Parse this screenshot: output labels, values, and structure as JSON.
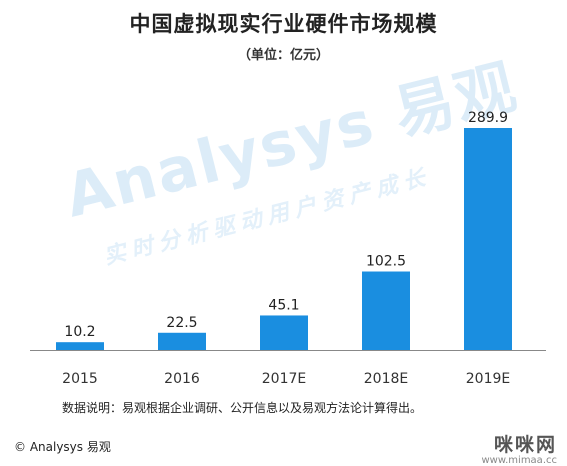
{
  "title": "中国虚拟现实行业硬件市场规模",
  "subtitle": "（单位：亿元）",
  "watermark": {
    "brand": "Analysys 易观",
    "slogan": "实时分析驱动用户资产成长"
  },
  "note": "数据说明：易观根据企业调研、公开信息以及易观方法论计算得出。",
  "footer": {
    "copyright": "© Analysys 易观",
    "site_name": "咪咪网",
    "site_url": "www.mimaa.cc"
  },
  "colors": {
    "bar": "#1a8ee0",
    "axis": "#888888",
    "text": "#222222"
  },
  "chart_data": {
    "type": "bar",
    "title": "中国虚拟现实行业硬件市场规模",
    "subtitle": "（单位：亿元）",
    "categories": [
      "2015",
      "2016",
      "2017E",
      "2018E",
      "2019E"
    ],
    "values": [
      10.2,
      22.5,
      45.1,
      102.5,
      289.9
    ],
    "data_labels": [
      "10.2",
      "22.5",
      "45.1",
      "102.5",
      "289.9"
    ],
    "ylim": [
      0,
      300
    ],
    "xlabel": "",
    "ylabel": "",
    "grid": false,
    "legend": "none"
  }
}
